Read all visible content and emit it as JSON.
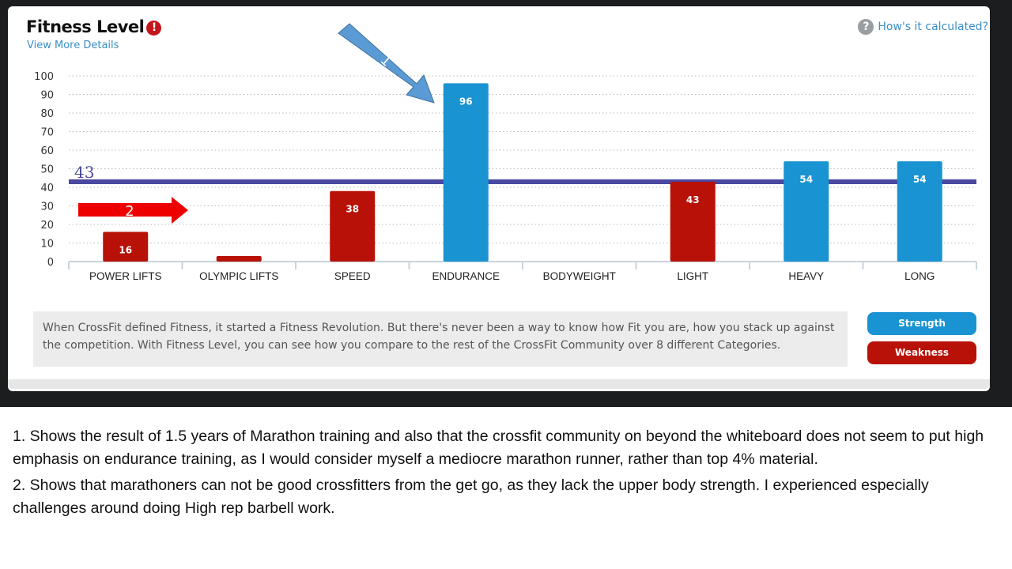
{
  "header": {
    "title": "Fitness Level",
    "alert_icon": "!",
    "details_link": "View More Details",
    "calc_link": "How's it calculated?",
    "help_icon": "?"
  },
  "chart_data": {
    "type": "bar",
    "title": "Fitness Level",
    "categories": [
      "POWER LIFTS",
      "OLYMPIC LIFTS",
      "SPEED",
      "ENDURANCE",
      "BODYWEIGHT",
      "LIGHT",
      "HEAVY",
      "LONG"
    ],
    "values": [
      16,
      3,
      38,
      96,
      0,
      43,
      54,
      54
    ],
    "labels": [
      "16",
      "",
      "38",
      "96",
      "",
      "43",
      "54",
      "54"
    ],
    "classes": [
      "Weakness",
      "Weakness",
      "Weakness",
      "Strength",
      "Weakness",
      "Weakness",
      "Strength",
      "Strength"
    ],
    "yticks": [
      0,
      10,
      20,
      30,
      40,
      50,
      60,
      70,
      80,
      90,
      100
    ],
    "ylim": [
      0,
      100
    ],
    "grid": true,
    "average": {
      "value": 43,
      "label": "43"
    },
    "colors": {
      "Strength": "#1a93d2",
      "Weakness": "#b81108",
      "average": "#4a48a0"
    },
    "annotations": [
      {
        "label": "1",
        "target": "ENDURANCE",
        "color": "#5b9bd5"
      },
      {
        "label": "2",
        "target": "POWER LIFTS",
        "color": "#ee0000"
      }
    ],
    "legend": {
      "position": "bottom-right",
      "items": [
        "Strength",
        "Weakness"
      ]
    }
  },
  "description": "When CrossFit defined Fitness, it started a Fitness Revolution. But there's never been a way to know how Fit you are, how you stack up against the competition. With Fitness Level, you can see how you compare to the rest of the CrossFit Community over 8 different Categories.",
  "notes": [
    "1. Shows the result of 1.5 years of Marathon training and also that the crossfit community on beyond the whiteboard  does not seem to put high emphasis on endurance training, as I would consider myself a mediocre marathon runner, rather than top 4% material.",
    "2. Shows that marathoners can not be good crossfitters from the get go, as they lack the upper body strength. I experienced especially challenges around doing High rep barbell work."
  ]
}
